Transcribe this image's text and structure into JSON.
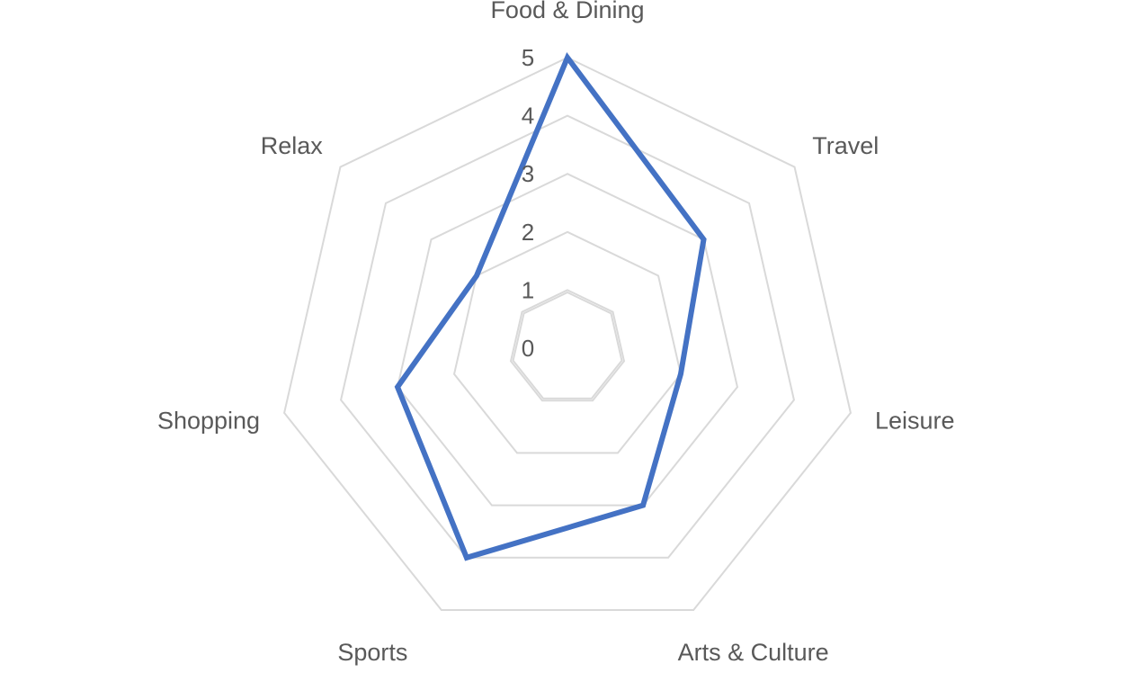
{
  "chart_data": {
    "type": "radar",
    "title": "",
    "categories": [
      "Food & Dining",
      "Travel",
      "Leisure",
      "Arts & Culture",
      "Sports",
      "Shopping",
      "Relax"
    ],
    "series": [
      {
        "values": [
          5,
          3,
          2,
          3,
          4,
          3,
          2
        ],
        "color": "#4472C4"
      }
    ],
    "rlim": [
      0,
      5
    ],
    "ticks": [
      "0",
      "1",
      "2",
      "3",
      "4",
      "5"
    ],
    "grid": true,
    "grid_color": "#D9D9D9",
    "legend": "none"
  }
}
